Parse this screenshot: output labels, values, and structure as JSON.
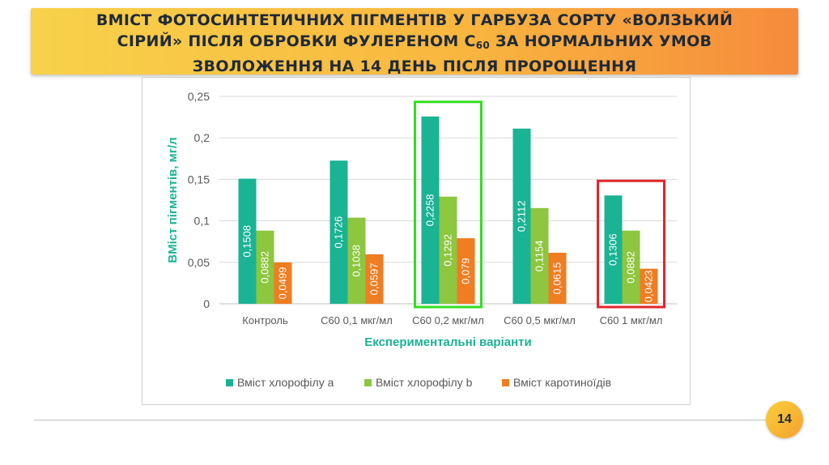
{
  "slide": {
    "title_line1": "ВМІСТ ФОТОСИНТЕТИЧНИХ ПІГМЕНТІВ У ГАРБУЗА СОРТУ «ВОЛЗЬКИЙ",
    "title_line2_a": "СІРИЙ» ПІСЛЯ ОБРОБКИ ФУЛЕРЕНОМ С",
    "title_line2_sub": "60",
    "title_line2_b": " ЗА НОРМАЛЬНИХ УМОВ",
    "title_line3": "ЗВОЛОЖЕННЯ НА 14 ДЕНЬ ПІСЛЯ ПРОРОЩЕННЯ",
    "page_number": "14"
  },
  "chart_data": {
    "type": "bar",
    "categories": [
      "Контроль",
      "С60 0,1 мкг/мл",
      "С60 0,2 мкг/мл",
      "С60 0,5 мкг/мл",
      "С60 1 мкг/мл"
    ],
    "series": [
      {
        "name": "Вміст хлорофілу а",
        "color": "#1ab394",
        "values": [
          0.1508,
          0.1726,
          0.2258,
          0.2112,
          0.1306
        ],
        "labels": [
          "0,1508",
          "0,1726",
          "0,2258",
          "0,2112",
          "0,1306"
        ]
      },
      {
        "name": "Вміст хлорофілу b",
        "color": "#8dc63f",
        "values": [
          0.0882,
          0.1038,
          0.1292,
          0.1154,
          0.0882
        ],
        "labels": [
          "0,0882",
          "0,1038",
          "0,1292",
          "0,1154",
          "0,0882"
        ]
      },
      {
        "name": "Вміст каротиноїдів",
        "color": "#ef7d22",
        "values": [
          0.0499,
          0.0597,
          0.079,
          0.0615,
          0.0423
        ],
        "labels": [
          "0,0499",
          "0,0597",
          "0,079",
          "0,0615",
          "0,0423"
        ]
      }
    ],
    "xlabel": "Експериментальні варіанти",
    "ylabel": "ВМіст пігментів, мг/л",
    "ylim": [
      0,
      0.25
    ],
    "yticks": [
      0,
      0.05,
      0.1,
      0.15,
      0.2,
      0.25
    ],
    "ytick_labels": [
      "0",
      "0,05",
      "0,1",
      "0,15",
      "0,2",
      "0,25"
    ],
    "grid": true,
    "legend_position": "bottom",
    "highlights": [
      {
        "category_index": 2,
        "color": "#33dd22"
      },
      {
        "category_index": 4,
        "color": "#e0262b"
      }
    ],
    "axis_title_color": "#1ab394"
  }
}
